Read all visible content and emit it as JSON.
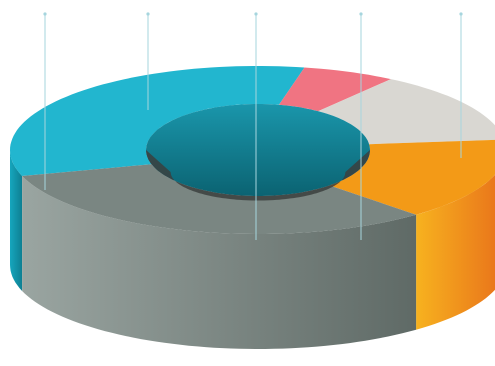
{
  "chart_data": {
    "type": "pie",
    "variant": "3d-donut",
    "title": "",
    "legend": "none",
    "slices": [
      {
        "value": 33,
        "color": "#22b6cf",
        "side_light": "#16a6bd",
        "side_dark": "#0e7f92"
      },
      {
        "value": 6,
        "color": "#f07482",
        "side_light": "#e25d6c",
        "side_dark": "#b8404f"
      },
      {
        "value": 14,
        "color": "#d9d7d2",
        "side_light": "#eeece7",
        "side_dark": "#b9b7b1"
      },
      {
        "value": 16,
        "color": "#f39a17",
        "side_light": "#f7b21f",
        "side_dark": "#e8701a"
      },
      {
        "value": 31,
        "color": "#7a8682",
        "side_light": "#9aa5a1",
        "side_dark": "#5f6a66"
      }
    ],
    "inner_face_color": "#1a96ab",
    "leader_line_color": "#a6d5de",
    "leader_lines": 5
  }
}
